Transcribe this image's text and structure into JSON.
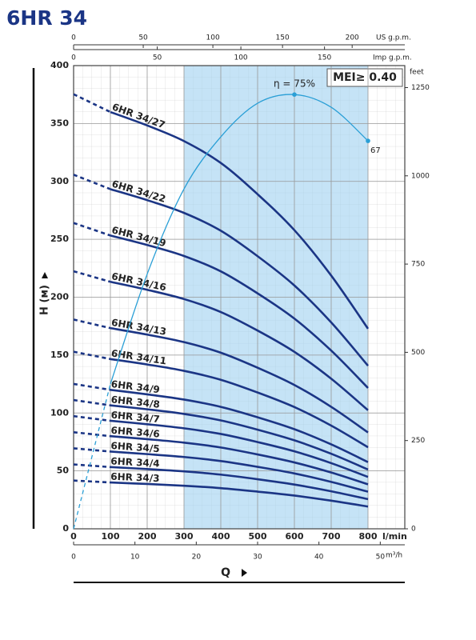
{
  "chart_data": {
    "type": "line",
    "title": "6HR 34",
    "xlabel": "Q",
    "ylabel": "H (м)",
    "x_unit": "l/min",
    "badge": "MEI≥ 0.40",
    "x": [
      0,
      100,
      200,
      300,
      400,
      500,
      600,
      700,
      800
    ],
    "xlim": [
      0,
      900
    ],
    "xticks": [
      0,
      100,
      200,
      300,
      400,
      500,
      600,
      700,
      800
    ],
    "ylim": [
      0,
      400
    ],
    "yticks": [
      0,
      50,
      100,
      150,
      200,
      250,
      300,
      350,
      400
    ],
    "grid": true,
    "dashed_to_x": 100,
    "recommended_range": [
      300,
      800
    ],
    "top_axis_1": {
      "label": "US g.p.m.",
      "lim": [
        0,
        237.8
      ],
      "ticks": [
        0,
        50,
        100,
        150,
        200
      ]
    },
    "top_axis_2": {
      "label": "Imp g.p.m.",
      "lim": [
        0,
        198
      ],
      "ticks": [
        0,
        50,
        100,
        150
      ]
    },
    "bottom_axis_2": {
      "label": "m³/h",
      "lim": [
        0,
        54
      ],
      "ticks": [
        0,
        10,
        20,
        30,
        40,
        50
      ]
    },
    "right_axis": {
      "label": "feet",
      "lim": [
        0,
        1312.3
      ],
      "ticks": [
        0,
        250,
        500,
        750,
        1000,
        1250
      ]
    },
    "series": [
      {
        "name": "6HR 34/27",
        "color": "#1b3585",
        "values": [
          375.3,
          359.9,
          348.3,
          334.8,
          315.9,
          288.9,
          257.9,
          218.7,
          172.8
        ]
      },
      {
        "name": "6HR 34/22",
        "color": "#1b3585",
        "values": [
          305.8,
          293.3,
          283.8,
          272.8,
          257.4,
          235.4,
          210.1,
          178.2,
          140.8
        ]
      },
      {
        "name": "6HR 34/19",
        "color": "#1b3585",
        "values": [
          264.1,
          253.3,
          245.1,
          235.6,
          222.3,
          203.3,
          181.5,
          153.9,
          121.6
        ]
      },
      {
        "name": "6HR 34/16",
        "color": "#1b3585",
        "values": [
          222.4,
          213.3,
          206.4,
          198.4,
          187.2,
          171.2,
          152.8,
          129.6,
          102.4
        ]
      },
      {
        "name": "6HR 34/13",
        "color": "#1b3585",
        "values": [
          180.7,
          173.3,
          167.7,
          161.2,
          152.1,
          139.1,
          124.2,
          105.3,
          83.2
        ]
      },
      {
        "name": "6HR 34/11",
        "color": "#1b3585",
        "values": [
          152.9,
          146.6,
          141.9,
          136.4,
          128.7,
          117.7,
          105.1,
          89.1,
          70.4
        ]
      },
      {
        "name": "6HR 34/9",
        "color": "#1b3585",
        "values": [
          125.1,
          120.0,
          116.1,
          111.6,
          105.3,
          96.3,
          86.0,
          72.9,
          57.6
        ]
      },
      {
        "name": "6HR 34/8",
        "color": "#1b3585",
        "values": [
          111.2,
          106.6,
          103.2,
          99.2,
          93.6,
          85.6,
          76.4,
          64.8,
          51.2
        ]
      },
      {
        "name": "6HR 34/7",
        "color": "#1b3585",
        "values": [
          97.3,
          93.3,
          90.3,
          86.8,
          81.9,
          74.9,
          66.9,
          56.7,
          44.8
        ]
      },
      {
        "name": "6HR 34/6",
        "color": "#1b3585",
        "values": [
          83.4,
          80.0,
          77.4,
          74.4,
          70.2,
          64.2,
          57.3,
          48.6,
          38.4
        ]
      },
      {
        "name": "6HR 34/5",
        "color": "#1b3585",
        "values": [
          69.5,
          66.7,
          64.5,
          62.0,
          58.5,
          53.5,
          47.8,
          40.5,
          32.0
        ]
      },
      {
        "name": "6HR 34/4",
        "color": "#1b3585",
        "values": [
          55.6,
          53.3,
          51.6,
          49.6,
          46.8,
          42.8,
          38.2,
          32.4,
          25.6
        ]
      },
      {
        "name": "6HR 34/3",
        "color": "#1b3585",
        "values": [
          41.7,
          40.0,
          38.7,
          37.2,
          35.1,
          32.1,
          28.7,
          24.3,
          19.2
        ]
      }
    ],
    "efficiency": {
      "color": "#2a9fd6",
      "ylim": [
        0,
        80
      ],
      "values": [
        0,
        25,
        44,
        58.7,
        67.7,
        73.5,
        75,
        72.8,
        67
      ],
      "value_labels": [
        null,
        null,
        null,
        null,
        null,
        null,
        "η = 75%",
        null,
        "67"
      ]
    }
  }
}
